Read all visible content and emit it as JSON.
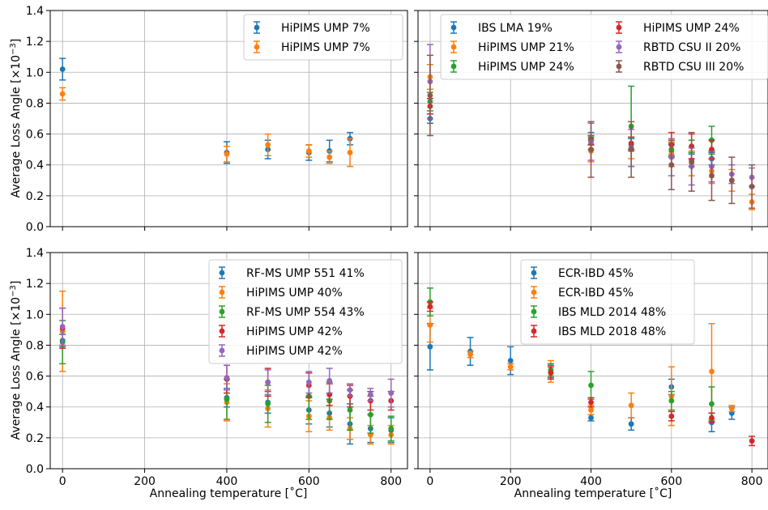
{
  "figure": {
    "ylabel_prefix": "Average Loss Angle [×10",
    "ylabel_exp": "−3",
    "ylabel_suffix": "]",
    "xlabel": "Annealing temperature [˚C]"
  },
  "chart_data": [
    {
      "type": "scatter",
      "panel": "top-left",
      "xlim": [
        -30,
        840
      ],
      "ylim": [
        0,
        1.4
      ],
      "yticks": [
        0.0,
        0.2,
        0.4,
        0.6,
        0.8,
        1.0,
        1.2,
        1.4
      ],
      "xticks": [
        0,
        200,
        400,
        600,
        800
      ],
      "legend": {
        "position": "top-right",
        "ncol": 1
      },
      "series": [
        {
          "name": "HiPIMS UMP  7%",
          "color": "#1f77b4",
          "points": [
            {
              "x": 0,
              "y": 1.02,
              "err": 0.07
            },
            {
              "x": 400,
              "y": 0.48,
              "err": 0.07
            },
            {
              "x": 500,
              "y": 0.5,
              "err": 0.06
            },
            {
              "x": 600,
              "y": 0.48,
              "err": 0.05
            },
            {
              "x": 650,
              "y": 0.49,
              "err": 0.07
            },
            {
              "x": 700,
              "y": 0.57,
              "err": 0.04
            }
          ]
        },
        {
          "name": "HiPIMS UMP  7%",
          "color": "#ff7f0e",
          "points": [
            {
              "x": 0,
              "y": 0.86,
              "err": 0.04
            },
            {
              "x": 400,
              "y": 0.47,
              "err": 0.05
            },
            {
              "x": 500,
              "y": 0.53,
              "err": 0.07
            },
            {
              "x": 600,
              "y": 0.49,
              "err": 0.04
            },
            {
              "x": 650,
              "y": 0.45,
              "err": 0.04
            },
            {
              "x": 700,
              "y": 0.48,
              "err": 0.09
            }
          ]
        }
      ]
    },
    {
      "type": "scatter",
      "panel": "top-right",
      "xlim": [
        -30,
        840
      ],
      "ylim": [
        0,
        1.4
      ],
      "yticks": [
        0.0,
        0.2,
        0.4,
        0.6,
        0.8,
        1.0,
        1.2,
        1.4
      ],
      "xticks": [
        0,
        200,
        400,
        600,
        800
      ],
      "legend": {
        "position": "top",
        "ncol": 2
      },
      "series": [
        {
          "name": "IBS LMA  19%",
          "color": "#1f77b4",
          "points": [
            {
              "x": 0,
              "y": 0.7,
              "err": 0.03
            },
            {
              "x": 400,
              "y": 0.57,
              "err": 0.04
            },
            {
              "x": 500,
              "y": 0.53,
              "err": 0.04
            },
            {
              "x": 600,
              "y": 0.49,
              "err": 0.04
            },
            {
              "x": 650,
              "y": 0.43,
              "err": 0.04
            },
            {
              "x": 700,
              "y": 0.44,
              "err": 0.04
            }
          ]
        },
        {
          "name": "HiPIMS UMP  21%",
          "color": "#ff7f0e",
          "points": [
            {
              "x": 0,
              "y": 0.97,
              "err": 0.08
            },
            {
              "x": 400,
              "y": 0.49,
              "err": 0.07
            },
            {
              "x": 500,
              "y": 0.51,
              "err": 0.07
            },
            {
              "x": 600,
              "y": 0.47,
              "err": 0.08
            },
            {
              "x": 650,
              "y": 0.41,
              "err": 0.08
            },
            {
              "x": 700,
              "y": 0.36,
              "err": 0.08
            },
            {
              "x": 750,
              "y": 0.3,
              "err": 0.07
            },
            {
              "x": 800,
              "y": 0.16,
              "err": 0.05
            }
          ]
        },
        {
          "name": "HiPIMS UMP  24%",
          "color": "#2ca02c",
          "points": [
            {
              "x": 0,
              "y": 0.81,
              "err": 0.06
            },
            {
              "x": 400,
              "y": 0.54,
              "err": 0.04
            },
            {
              "x": 500,
              "y": 0.65,
              "err": 0.26
            },
            {
              "x": 600,
              "y": 0.5,
              "err": 0.04
            },
            {
              "x": 650,
              "y": 0.52,
              "err": 0.04
            },
            {
              "x": 700,
              "y": 0.56,
              "err": 0.09
            }
          ]
        },
        {
          "name": "HiPIMS UMP  24%",
          "color": "#d62728",
          "points": [
            {
              "x": 0,
              "y": 0.78,
              "err": 0.05
            },
            {
              "x": 400,
              "y": 0.56,
              "err": 0.03
            },
            {
              "x": 500,
              "y": 0.54,
              "err": 0.04
            },
            {
              "x": 600,
              "y": 0.53,
              "err": 0.08
            },
            {
              "x": 650,
              "y": 0.52,
              "err": 0.08
            },
            {
              "x": 700,
              "y": 0.5,
              "err": 0.06
            }
          ]
        },
        {
          "name": "RBTD CSU II  20%",
          "color": "#9467bd",
          "points": [
            {
              "x": 0,
              "y": 0.94,
              "err": 0.24
            },
            {
              "x": 400,
              "y": 0.55,
              "err": 0.12
            },
            {
              "x": 500,
              "y": 0.51,
              "err": 0.12
            },
            {
              "x": 600,
              "y": 0.45,
              "err": 0.12
            },
            {
              "x": 650,
              "y": 0.39,
              "err": 0.12
            },
            {
              "x": 700,
              "y": 0.39,
              "err": 0.1
            },
            {
              "x": 750,
              "y": 0.34,
              "err": 0.06
            },
            {
              "x": 800,
              "y": 0.32,
              "err": 0.06
            }
          ]
        },
        {
          "name": "RBTD CSU III  20%",
          "color": "#8c564b",
          "points": [
            {
              "x": 0,
              "y": 0.85,
              "err": 0.26
            },
            {
              "x": 400,
              "y": 0.5,
              "err": 0.18
            },
            {
              "x": 500,
              "y": 0.5,
              "err": 0.18
            },
            {
              "x": 600,
              "y": 0.4,
              "err": 0.16
            },
            {
              "x": 650,
              "y": 0.42,
              "err": 0.19
            },
            {
              "x": 700,
              "y": 0.33,
              "err": 0.16
            },
            {
              "x": 750,
              "y": 0.3,
              "err": 0.15
            },
            {
              "x": 800,
              "y": 0.26,
              "err": 0.14
            }
          ]
        }
      ]
    },
    {
      "type": "scatter",
      "panel": "bottom-left",
      "xlim": [
        -30,
        840
      ],
      "ylim": [
        0,
        1.4
      ],
      "yticks": [
        0.0,
        0.2,
        0.4,
        0.6,
        0.8,
        1.0,
        1.2,
        1.4
      ],
      "xticks": [
        0,
        200,
        400,
        600,
        800
      ],
      "legend": {
        "position": "top-right",
        "ncol": 1
      },
      "series": [
        {
          "name": "RF-MS UMP 551  41%",
          "color": "#1f77b4",
          "points": [
            {
              "x": 0,
              "y": 0.83,
              "err": 0.04
            },
            {
              "x": 400,
              "y": 0.46,
              "err": 0.06
            },
            {
              "x": 500,
              "y": 0.43,
              "err": 0.07
            },
            {
              "x": 600,
              "y": 0.38,
              "err": 0.09
            },
            {
              "x": 650,
              "y": 0.36,
              "err": 0.09
            },
            {
              "x": 700,
              "y": 0.29,
              "err": 0.13
            },
            {
              "x": 750,
              "y": 0.26,
              "err": 0.09
            },
            {
              "x": 800,
              "y": 0.25,
              "err": 0.08
            }
          ]
        },
        {
          "name": "HiPIMS UMP  40%",
          "color": "#ff7f0e",
          "points": [
            {
              "x": 0,
              "y": 0.89,
              "err": 0.26
            },
            {
              "x": 400,
              "y": 0.43,
              "err": 0.12
            },
            {
              "x": 500,
              "y": 0.39,
              "err": 0.12
            },
            {
              "x": 600,
              "y": 0.34,
              "err": 0.1
            },
            {
              "x": 650,
              "y": 0.33,
              "err": 0.08
            },
            {
              "x": 700,
              "y": 0.26,
              "err": 0.07
            },
            {
              "x": 750,
              "y": 0.22,
              "err": 0.06
            },
            {
              "x": 800,
              "y": 0.22,
              "err": 0.06
            }
          ]
        },
        {
          "name": "RF-MS UMP 554  43%",
          "color": "#2ca02c",
          "points": [
            {
              "x": 0,
              "y": 0.82,
              "err": 0.14
            },
            {
              "x": 400,
              "y": 0.45,
              "err": 0.13
            },
            {
              "x": 500,
              "y": 0.42,
              "err": 0.12
            },
            {
              "x": 600,
              "y": 0.47,
              "err": 0.15
            },
            {
              "x": 650,
              "y": 0.44,
              "err": 0.12
            },
            {
              "x": 700,
              "y": 0.38,
              "err": 0.13
            },
            {
              "x": 750,
              "y": 0.35,
              "err": 0.12
            },
            {
              "x": 800,
              "y": 0.26,
              "err": 0.08
            }
          ]
        },
        {
          "name": "HiPIMS UMP  42%",
          "color": "#d62728",
          "points": [
            {
              "x": 0,
              "y": 0.91,
              "err": 0.13
            },
            {
              "x": 400,
              "y": 0.58,
              "err": 0.09
            },
            {
              "x": 500,
              "y": 0.56,
              "err": 0.09
            },
            {
              "x": 600,
              "y": 0.54,
              "err": 0.08
            },
            {
              "x": 650,
              "y": 0.48,
              "err": 0.07
            },
            {
              "x": 700,
              "y": 0.47,
              "err": 0.07
            },
            {
              "x": 750,
              "y": 0.44,
              "err": 0.06
            },
            {
              "x": 800,
              "y": 0.44,
              "err": 0.06
            }
          ]
        },
        {
          "name": "HiPIMS UMP  42%",
          "color": "#9467bd",
          "points": [
            {
              "x": 0,
              "y": 0.92,
              "err": 0.12
            },
            {
              "x": 400,
              "y": 0.59,
              "err": 0.08
            },
            {
              "x": 500,
              "y": 0.56,
              "err": 0.08
            },
            {
              "x": 600,
              "y": 0.56,
              "err": 0.07
            },
            {
              "x": 650,
              "y": 0.57,
              "err": 0.08
            },
            {
              "x": 700,
              "y": 0.51,
              "err": 0.04
            },
            {
              "x": 750,
              "y": 0.48,
              "err": 0.04
            },
            {
              "x": 800,
              "y": 0.49,
              "err": 0.09
            }
          ]
        }
      ]
    },
    {
      "type": "scatter",
      "panel": "bottom-right",
      "xlim": [
        -30,
        840
      ],
      "ylim": [
        0,
        1.4
      ],
      "yticks": [
        0.0,
        0.2,
        0.4,
        0.6,
        0.8,
        1.0,
        1.2,
        1.4
      ],
      "xticks": [
        0,
        200,
        400,
        600,
        800
      ],
      "legend": {
        "position": "top-center",
        "ncol": 1
      },
      "series": [
        {
          "name": "ECR-IBD  45%",
          "color": "#1f77b4",
          "points": [
            {
              "x": 0,
              "y": 0.79,
              "err": 0.15
            },
            {
              "x": 100,
              "y": 0.76,
              "err": 0.09
            },
            {
              "x": 200,
              "y": 0.7,
              "err": 0.09
            },
            {
              "x": 300,
              "y": 0.63,
              "err": 0.04
            },
            {
              "x": 400,
              "y": 0.33,
              "err": 0.02
            },
            {
              "x": 500,
              "y": 0.29,
              "err": 0.04
            },
            {
              "x": 600,
              "y": 0.53,
              "err": 0.05
            },
            {
              "x": 700,
              "y": 0.3,
              "err": 0.06
            },
            {
              "x": 750,
              "y": 0.36,
              "err": 0.04
            }
          ]
        },
        {
          "name": "ECR-IBD  45%",
          "color": "#ff7f0e",
          "points": [
            {
              "x": 0,
              "y": 0.93,
              "err": 0.11
            },
            {
              "x": 100,
              "y": 0.74,
              "err": 0.02
            },
            {
              "x": 200,
              "y": 0.66,
              "err": 0.02
            },
            {
              "x": 300,
              "y": 0.63,
              "err": 0.07
            },
            {
              "x": 400,
              "y": 0.38,
              "err": 0.03
            },
            {
              "x": 500,
              "y": 0.41,
              "err": 0.08
            },
            {
              "x": 600,
              "y": 0.47,
              "err": 0.19
            },
            {
              "x": 700,
              "y": 0.63,
              "err": 0.31
            },
            {
              "x": 750,
              "y": 0.39,
              "err": 0.02
            }
          ]
        },
        {
          "name": "IBS MLD 2014  48%",
          "color": "#2ca02c",
          "points": [
            {
              "x": 0,
              "y": 1.08,
              "err": 0.09
            },
            {
              "x": 300,
              "y": 0.64,
              "err": 0.04
            },
            {
              "x": 400,
              "y": 0.54,
              "err": 0.09
            },
            {
              "x": 600,
              "y": 0.44,
              "err": 0.06
            },
            {
              "x": 700,
              "y": 0.42,
              "err": 0.11
            }
          ]
        },
        {
          "name": "IBS MLD 2018  48%",
          "color": "#d62728",
          "points": [
            {
              "x": 0,
              "y": 1.05,
              "err": 0.03
            },
            {
              "x": 300,
              "y": 0.62,
              "err": 0.04
            },
            {
              "x": 400,
              "y": 0.43,
              "err": 0.03
            },
            {
              "x": 600,
              "y": 0.34,
              "err": 0.03
            },
            {
              "x": 700,
              "y": 0.33,
              "err": 0.03
            },
            {
              "x": 800,
              "y": 0.18,
              "err": 0.03
            }
          ]
        }
      ]
    }
  ]
}
